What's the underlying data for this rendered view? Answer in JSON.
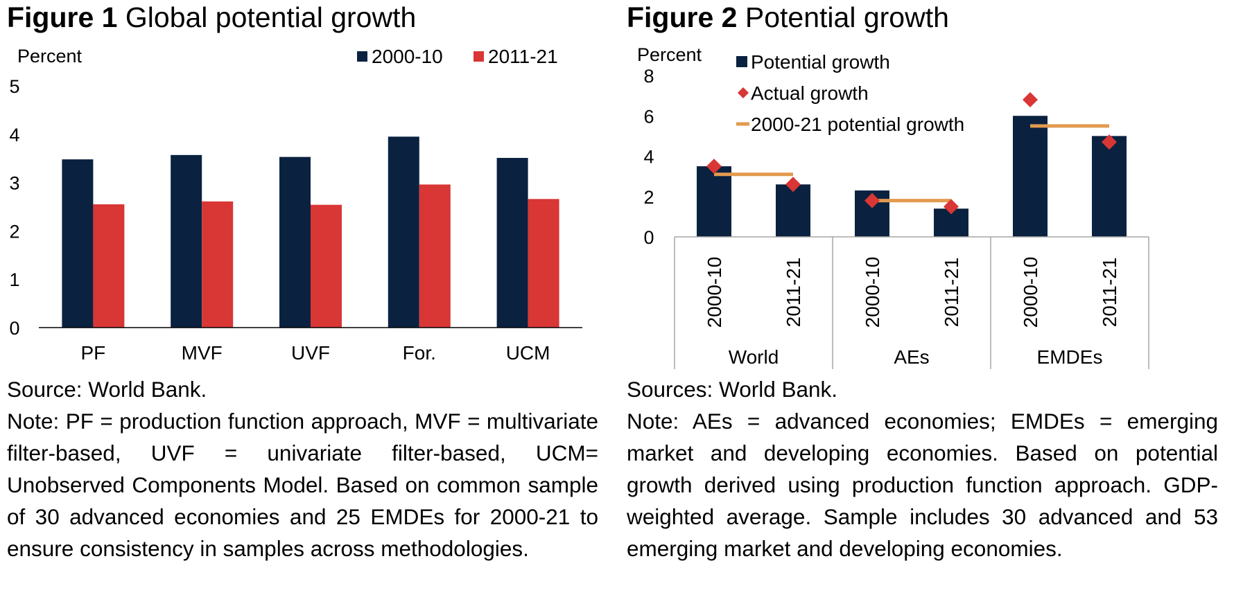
{
  "figure1": {
    "title_number": "Figure 1",
    "title_text": "Global potential growth",
    "source": "Source: World Bank.",
    "note": "Note: PF = production function approach, MVF = multivariate filter-based, UVF = univariate filter-based, UCM= Unobserved Components Model. Based on common sample of 30 advanced economies and 25 EMDEs for 2000-21 to ensure consistency in samples across methodologies."
  },
  "figure2": {
    "title_number": "Figure 2",
    "title_text": "Potential growth",
    "source": "Sources: World Bank.",
    "note": "Note: AEs = advanced economies; EMDEs = emerging market and developing economies. Based on potential growth derived using production function approach. GDP-weighted average. Sample includes 30 advanced and 53 emerging market and developing economies."
  },
  "colors": {
    "navy": "#0a2240",
    "red": "#d93636",
    "orange": "#e39a4f",
    "axis": "#000000",
    "divider": "#a6a6a6"
  },
  "chart_data": [
    {
      "type": "bar",
      "title": "Figure 1 Global potential growth",
      "ylabel": "Percent",
      "xlabel": "",
      "ylim": [
        0,
        5
      ],
      "yticks": [
        "0",
        "1",
        "2",
        "3",
        "4",
        "5"
      ],
      "grid": false,
      "legend_position": "top-right",
      "categories": [
        "PF",
        "MVF",
        "UVF",
        "For.",
        "UCM"
      ],
      "series": [
        {
          "name": "2000-10",
          "color": "#0a2240",
          "values": [
            3.48,
            3.57,
            3.53,
            3.95,
            3.51
          ]
        },
        {
          "name": "2011-21",
          "color": "#d93636",
          "values": [
            2.55,
            2.61,
            2.54,
            2.96,
            2.66
          ]
        }
      ]
    },
    {
      "type": "bar",
      "title": "Figure 2 Potential growth",
      "ylabel": "Percent",
      "xlabel": "",
      "ylim": [
        0,
        8
      ],
      "yticks": [
        "0",
        "2",
        "4",
        "6",
        "8"
      ],
      "grid": false,
      "legend_position": "top-left",
      "groups": [
        "World",
        "AEs",
        "EMDEs"
      ],
      "periods": [
        "2000-10",
        "2011-21"
      ],
      "legend": [
        "Potential growth",
        "Actual growth",
        "2000-21 potential growth"
      ],
      "series": [
        {
          "name": "Potential growth",
          "kind": "bar",
          "color": "#0a2240",
          "values": [
            3.5,
            2.6,
            2.3,
            1.4,
            6.0,
            5.0
          ]
        },
        {
          "name": "Actual growth",
          "kind": "marker",
          "color": "#d93636",
          "values": [
            3.5,
            2.6,
            1.8,
            1.5,
            6.8,
            4.7
          ]
        },
        {
          "name": "2000-21 potential growth",
          "kind": "line",
          "color": "#e39a4f",
          "values": [
            3.1,
            1.8,
            5.5
          ]
        }
      ]
    }
  ]
}
